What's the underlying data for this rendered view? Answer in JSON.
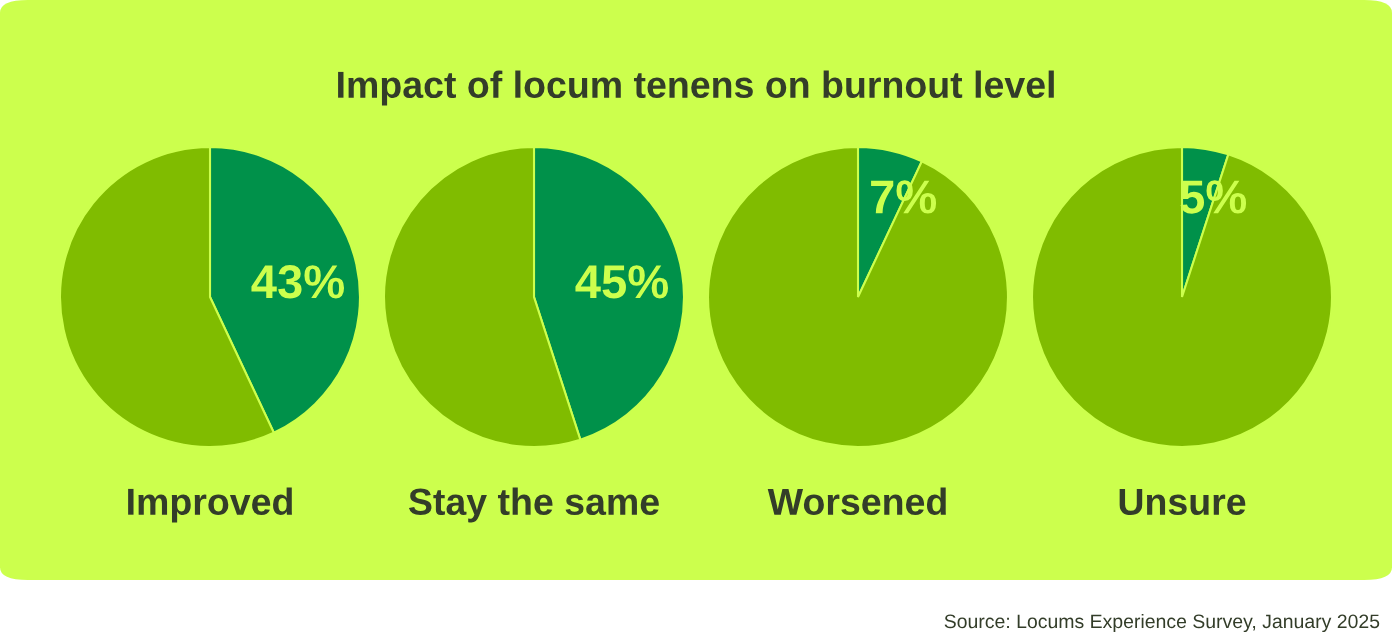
{
  "chart_data": [
    {
      "type": "pie",
      "title": "Impact of locum tenens on burnout level",
      "xlabel": "Improved",
      "categories": [
        null,
        null
      ],
      "values": [
        43,
        57
      ],
      "colors": [
        "#00914a",
        "#80bc00"
      ],
      "value_labels": [
        "43%",
        null
      ]
    },
    {
      "type": "pie",
      "xlabel": "Stay the same",
      "categories": [
        null,
        null
      ],
      "values": [
        45,
        55
      ],
      "colors": [
        "#00914a",
        "#80bc00"
      ],
      "value_labels": [
        "45%",
        null
      ]
    },
    {
      "type": "pie",
      "xlabel": "Worsened",
      "categories": [
        null,
        null
      ],
      "values": [
        7,
        93
      ],
      "colors": [
        "#00914a",
        "#80bc00"
      ],
      "value_labels": [
        "7%",
        null
      ]
    },
    {
      "type": "pie",
      "xlabel": "Unsure",
      "categories": [
        null,
        null
      ],
      "values": [
        5,
        95
      ],
      "colors": [
        "#00914a",
        "#80bc00"
      ],
      "value_labels": [
        "5%",
        null
      ],
      "annotations": [
        "Source: Locums Experience Survey, January 2025"
      ]
    }
  ]
}
